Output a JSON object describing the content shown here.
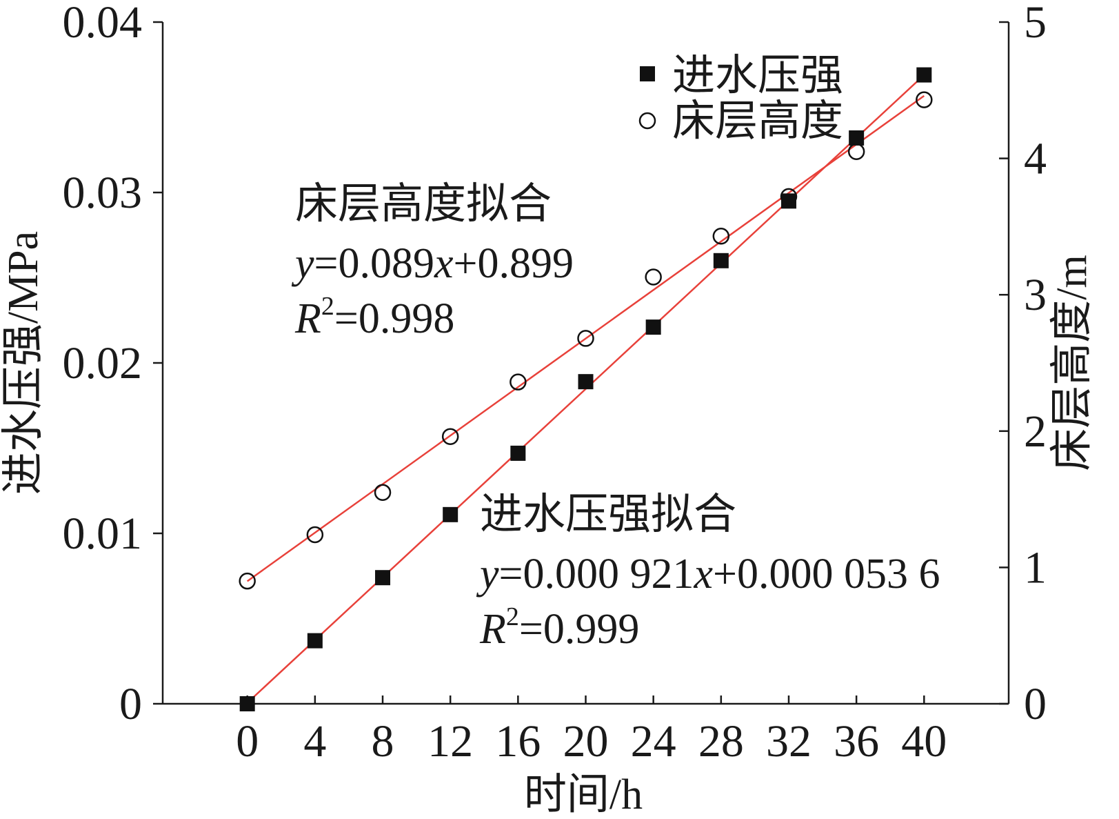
{
  "chart_data": {
    "type": "scatter",
    "x_axis": {
      "label": "时间/h",
      "range": [
        -5,
        45
      ],
      "ticks": [
        0,
        4,
        8,
        12,
        16,
        20,
        24,
        28,
        32,
        36,
        40
      ]
    },
    "y_left_axis": {
      "label": "进水压强/MPa",
      "range": [
        0,
        0.04
      ],
      "ticks": [
        0,
        0.01,
        0.02,
        0.03,
        0.04
      ],
      "tick_labels": [
        "0",
        "0.01",
        "0.02",
        "0.03",
        "0.04"
      ]
    },
    "y_right_axis": {
      "label": "床层高度/m",
      "range": [
        0,
        5
      ],
      "ticks": [
        0,
        1,
        2,
        3,
        4,
        5
      ],
      "tick_labels": [
        "0",
        "1",
        "2",
        "3",
        "4",
        "5"
      ]
    },
    "grid": false,
    "legend_position": "top-right",
    "series": [
      {
        "name": "进水压强",
        "axis": "left",
        "marker": "filled-square",
        "color": "#111111",
        "x": [
          0,
          4,
          8,
          12,
          16,
          20,
          24,
          28,
          32,
          36,
          40
        ],
        "y": [
          0,
          0.0037,
          0.0074,
          0.0111,
          0.0147,
          0.0189,
          0.0221,
          0.026,
          0.0295,
          0.0332,
          0.0369
        ]
      },
      {
        "name": "床层高度",
        "axis": "right",
        "marker": "open-circle",
        "color": "#111111",
        "x": [
          0,
          4,
          8,
          12,
          16,
          20,
          24,
          28,
          32,
          36,
          40
        ],
        "y": [
          0.9,
          1.24,
          1.55,
          1.96,
          2.36,
          2.68,
          3.13,
          3.43,
          3.72,
          4.05,
          4.43
        ]
      }
    ],
    "fits": [
      {
        "series": "进水压强",
        "axis": "left",
        "slope": 0.000921,
        "intercept": 5.36e-05,
        "x_range": [
          0,
          40
        ],
        "color": "#e8413a"
      },
      {
        "series": "床层高度",
        "axis": "right",
        "slope": 0.089,
        "intercept": 0.899,
        "x_range": [
          0,
          40
        ],
        "color": "#e8413a"
      }
    ],
    "annotations": {
      "bed_fit": {
        "title": "床层高度拟合",
        "eq_y": "y",
        "eq_rest": "=0.089",
        "eq_x": "x",
        "eq_tail": "+0.899",
        "r_letter": "R",
        "r_sup": "2",
        "r_value": "=0.998"
      },
      "pressure_fit": {
        "title": "进水压强拟合",
        "eq_y": "y",
        "eq_rest": "=0.000 921",
        "eq_x": "x",
        "eq_tail": "+0.000 053 6",
        "r_letter": "R",
        "r_sup": "2",
        "r_value": "=0.999"
      }
    }
  }
}
